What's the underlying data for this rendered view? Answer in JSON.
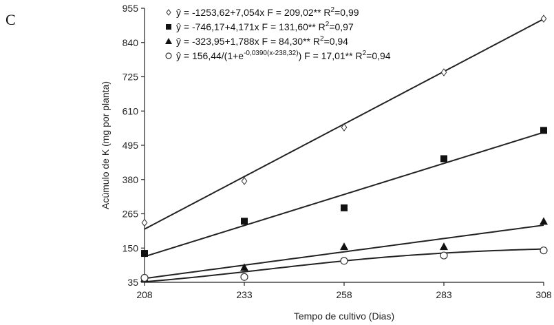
{
  "panel_label": "C",
  "chart_data": {
    "type": "scatter",
    "title": "",
    "xlabel": "Tempo de cultivo (Dias)",
    "ylabel": "Acúmulo de K (mg por planta)",
    "x": [
      208,
      233,
      258,
      283,
      308
    ],
    "xlim": [
      208,
      308
    ],
    "ylim": [
      35,
      955
    ],
    "xticks": [
      "208",
      "233",
      "258",
      "283",
      "308"
    ],
    "yticks": [
      "35",
      "150",
      "265",
      "380",
      "495",
      "610",
      "725",
      "840",
      "955"
    ],
    "grid": false,
    "legend_position": "top-left",
    "series": [
      {
        "marker": "diamond-open",
        "values": [
          235,
          375,
          555,
          740,
          920
        ],
        "legend": {
          "main": "ŷ = -1253,62+7,054x F = 209,02** R",
          "sup": "2",
          "tail": "=0,99"
        }
      },
      {
        "marker": "square-filled",
        "values": [
          132,
          240,
          285,
          450,
          545
        ],
        "legend": {
          "main": "ŷ = -746,17+4,171x F = 131,60** R",
          "sup": "2",
          "tail": "=0,97"
        }
      },
      {
        "marker": "triangle-filled",
        "values": [
          48,
          85,
          155,
          155,
          240
        ],
        "legend": {
          "main": "ŷ = -323,95+1,788x F = 84,30** R",
          "sup": "2",
          "tail": "=0,94"
        }
      },
      {
        "marker": "circle-open",
        "values": [
          50,
          53,
          107,
          125,
          142
        ],
        "legend": {
          "main": "ŷ = 156,44/(1+e",
          "sup": "-0,0390(x-238,32)",
          "tail": ") F = 17,01** R",
          "sup2": "2",
          "tail2": "=0,94"
        }
      }
    ]
  }
}
